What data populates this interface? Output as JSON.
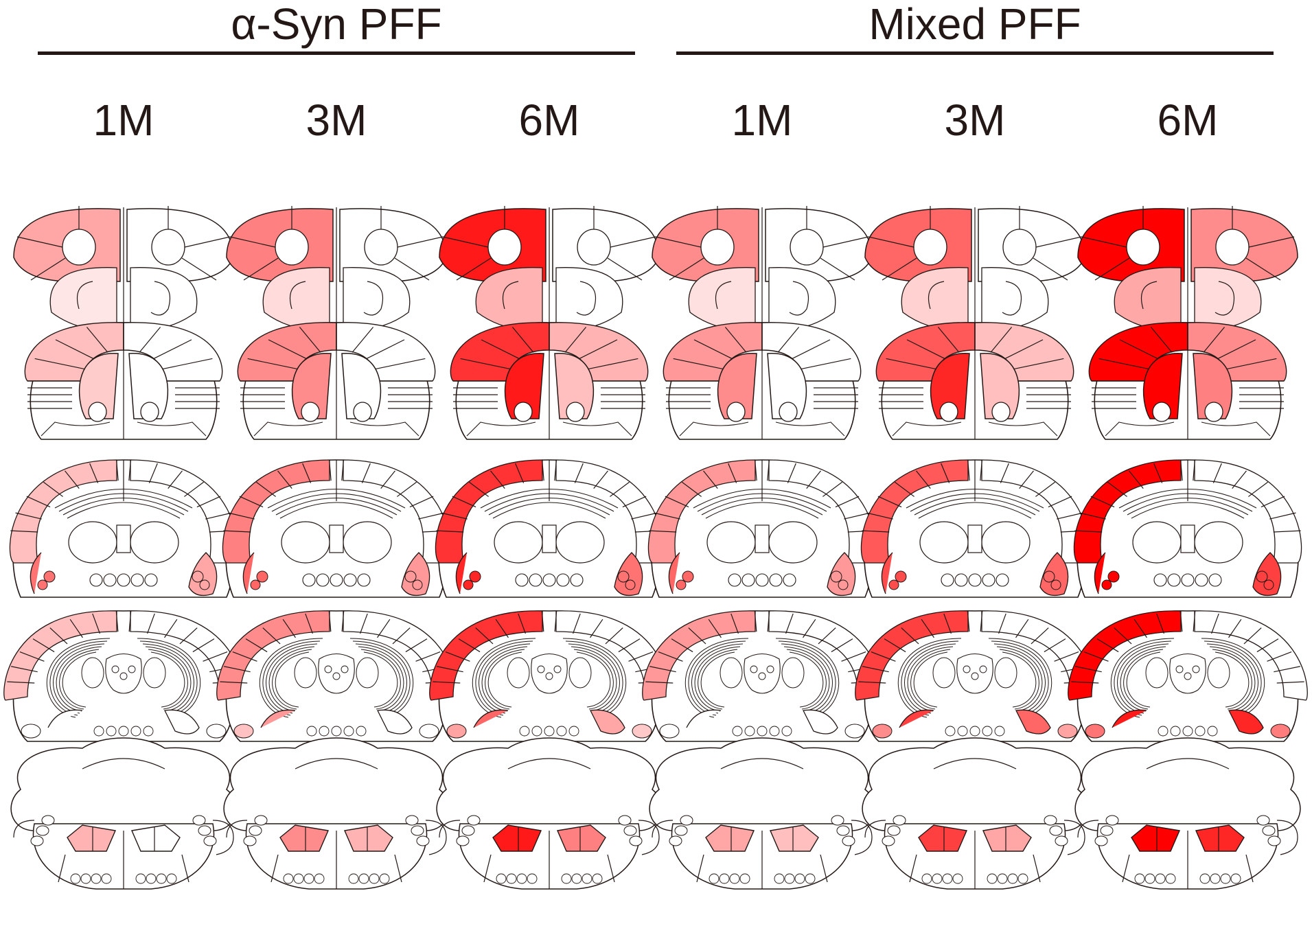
{
  "groups": [
    {
      "title": "α-Syn PFF",
      "timepoints": [
        "1M",
        "3M",
        "6M"
      ]
    },
    {
      "title": "Mixed PFF",
      "timepoints": [
        "1M",
        "3M",
        "6M"
      ]
    }
  ],
  "colors": {
    "text": "#231815",
    "outline": "#231815",
    "fill_max": "#ff0000",
    "fill_none": "#ffffff"
  },
  "scale_note": "intensity 0-1 maps white→red",
  "sections": [
    {
      "section": "olfactory",
      "intensities": [
        {
          "left_outer": 0.35,
          "left_inner": 0.25,
          "right_outer": 0.0,
          "right_inner": 0.0
        },
        {
          "left_outer": 0.5,
          "left_inner": 0.35,
          "right_outer": 0.0,
          "right_inner": 0.0
        },
        {
          "left_outer": 0.9,
          "left_inner": 0.75,
          "right_outer": 0.0,
          "right_inner": 0.0
        },
        {
          "left_outer": 0.45,
          "left_inner": 0.3,
          "right_outer": 0.0,
          "right_inner": 0.0
        },
        {
          "left_outer": 0.6,
          "left_inner": 0.45,
          "right_outer": 0.0,
          "right_inner": 0.0
        },
        {
          "left_outer": 1.0,
          "left_inner": 0.85,
          "right_outer": 0.45,
          "right_inner": 0.35
        }
      ]
    },
    {
      "section": "striatum",
      "intensities": [
        {
          "left_outer": 0.25,
          "left_inner": 0.2,
          "right_outer": 0.0,
          "right_inner": 0.0
        },
        {
          "left_outer": 0.45,
          "left_inner": 0.45,
          "right_outer": 0.0,
          "right_inner": 0.0
        },
        {
          "left_outer": 0.8,
          "left_inner": 0.9,
          "right_outer": 0.3,
          "right_inner": 0.25
        },
        {
          "left_outer": 0.4,
          "left_inner": 0.45,
          "right_outer": 0.0,
          "right_inner": 0.0
        },
        {
          "left_outer": 0.65,
          "left_inner": 0.85,
          "right_outer": 0.25,
          "right_inner": 0.25
        },
        {
          "left_outer": 1.0,
          "left_inner": 1.0,
          "right_outer": 0.45,
          "right_inner": 0.5
        }
      ]
    },
    {
      "section": "cortex-mid",
      "intensities": [
        {
          "left_outer": 0.25,
          "left_inner": 0.55,
          "right_outer": 0.0,
          "right_inner": 0.35
        },
        {
          "left_outer": 0.5,
          "left_inner": 0.6,
          "right_outer": 0.0,
          "right_inner": 0.4
        },
        {
          "left_outer": 0.8,
          "left_inner": 0.85,
          "right_outer": 0.0,
          "right_inner": 0.55
        },
        {
          "left_outer": 0.4,
          "left_inner": 0.6,
          "right_outer": 0.0,
          "right_inner": 0.4
        },
        {
          "left_outer": 0.65,
          "left_inner": 0.7,
          "right_outer": 0.0,
          "right_inner": 0.6
        },
        {
          "left_outer": 1.0,
          "left_inner": 1.0,
          "right_outer": 0.0,
          "right_inner": 0.75
        }
      ]
    },
    {
      "section": "hippocampus",
      "intensities": [
        {
          "left_outer": 0.25,
          "left_inner": 0.0,
          "right_outer": 0.0,
          "right_inner": 0.0
        },
        {
          "left_outer": 0.45,
          "left_inner": 0.4,
          "right_outer": 0.0,
          "right_inner": 0.0
        },
        {
          "left_outer": 0.8,
          "left_inner": 0.6,
          "right_outer": 0.0,
          "right_inner": 0.35
        },
        {
          "left_outer": 0.4,
          "left_inner": 0.0,
          "right_outer": 0.0,
          "right_inner": 0.0
        },
        {
          "left_outer": 0.75,
          "left_inner": 0.75,
          "right_outer": 0.0,
          "right_inner": 0.6
        },
        {
          "left_outer": 1.0,
          "left_inner": 0.9,
          "right_outer": 0.0,
          "right_inner": 0.85
        }
      ]
    },
    {
      "section": "brainstem",
      "intensities": [
        {
          "left_outer": 0.0,
          "left_inner": 0.3,
          "right_outer": 0.0,
          "right_inner": 0.0
        },
        {
          "left_outer": 0.0,
          "left_inner": 0.45,
          "right_outer": 0.0,
          "right_inner": 0.3
        },
        {
          "left_outer": 0.0,
          "left_inner": 0.9,
          "right_outer": 0.0,
          "right_inner": 0.5
        },
        {
          "left_outer": 0.0,
          "left_inner": 0.35,
          "right_outer": 0.0,
          "right_inner": 0.25
        },
        {
          "left_outer": 0.0,
          "left_inner": 0.75,
          "right_outer": 0.0,
          "right_inner": 0.35
        },
        {
          "left_outer": 0.0,
          "left_inner": 1.0,
          "right_outer": 0.0,
          "right_inner": 0.85
        }
      ]
    }
  ]
}
